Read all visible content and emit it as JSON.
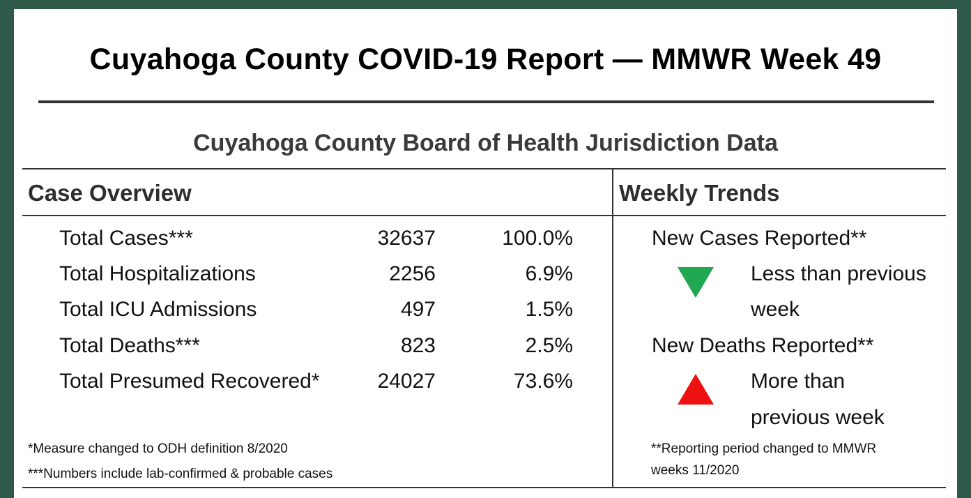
{
  "report": {
    "title": "Cuyahoga County COVID-19 Report — MMWR Week 49",
    "subtitle": "Cuyahoga County Board of Health Jurisdiction Data"
  },
  "case_overview": {
    "heading": "Case Overview",
    "rows": [
      {
        "label": "Total Cases***",
        "count": "32637",
        "percent": "100.0%"
      },
      {
        "label": "Total Hospitalizations",
        "count": "2256",
        "percent": "6.9%"
      },
      {
        "label": "Total ICU Admissions",
        "count": "497",
        "percent": "1.5%"
      },
      {
        "label": "Total Deaths***",
        "count": "823",
        "percent": "2.5%"
      },
      {
        "label": "Total Presumed Recovered*",
        "count": "24027",
        "percent": "73.6%"
      }
    ],
    "footnotes": [
      "*Measure changed to ODH  definition 8/2020",
      "***Numbers include lab-confirmed & probable cases"
    ]
  },
  "weekly_trends": {
    "heading": "Weekly Trends",
    "items": [
      {
        "label": "New Cases Reported**",
        "direction": "down",
        "color": "#1fa84f",
        "icon": "triangle-down-icon",
        "text_line1": "Less than previous",
        "text_line2": "week"
      },
      {
        "label": "New Deaths Reported**",
        "direction": "up",
        "color": "#ee1111",
        "icon": "triangle-up-icon",
        "text_line1": "More than",
        "text_line2": "previous week"
      }
    ],
    "footnote_line1": "**Reporting period changed to MMWR",
    "footnote_line2": "weeks 11/2020"
  },
  "colors": {
    "frame": "#2f5a4a",
    "background": "#ffffff",
    "trend_down": "#1fa84f",
    "trend_up": "#ee1111"
  }
}
